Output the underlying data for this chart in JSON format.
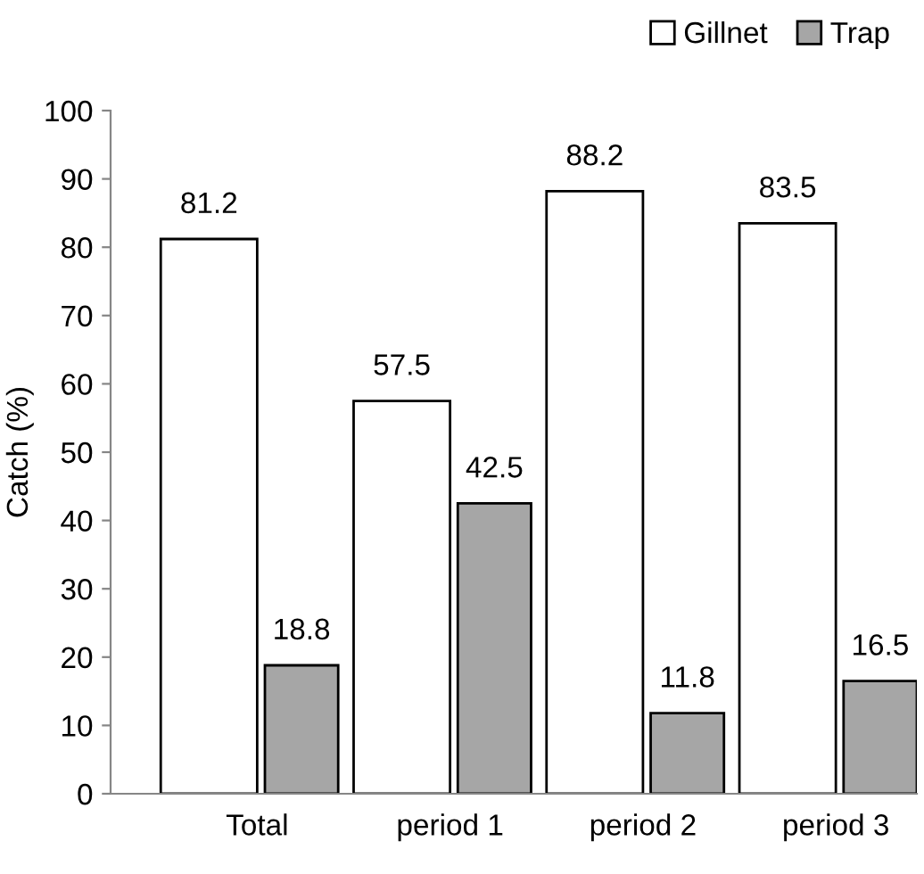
{
  "chart_data": {
    "type": "bar",
    "ylabel": "Catch (%)",
    "categories": [
      "Total",
      "period 1",
      "period 2",
      "period 3"
    ],
    "series": [
      {
        "name": "Gillnet",
        "color": "#ffffff",
        "values": [
          81.2,
          57.5,
          88.2,
          83.5
        ]
      },
      {
        "name": "Trap",
        "color": "#a6a6a6",
        "values": [
          18.8,
          42.5,
          11.8,
          16.5
        ]
      }
    ],
    "ylim": [
      0,
      100
    ],
    "yticks": [
      0,
      10,
      20,
      30,
      40,
      50,
      60,
      70,
      80,
      90,
      100
    ],
    "grid": false,
    "legend": "top right",
    "data_labels": true
  }
}
